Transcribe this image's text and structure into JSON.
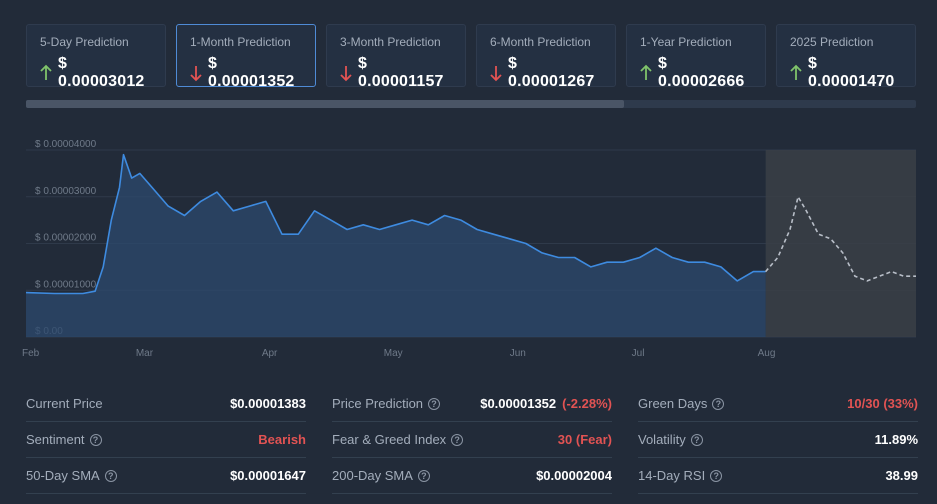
{
  "cards": [
    {
      "label": "5-Day Prediction",
      "value": "$ 0.00003012",
      "direction": "up",
      "active": false
    },
    {
      "label": "1-Month Prediction",
      "value": "$ 0.00001352",
      "direction": "down",
      "active": true
    },
    {
      "label": "3-Month Prediction",
      "value": "$ 0.00001157",
      "direction": "down",
      "active": false
    },
    {
      "label": "6-Month Prediction",
      "value": "$ 0.00001267",
      "direction": "down",
      "active": false
    },
    {
      "label": "1-Year Prediction",
      "value": "$ 0.00002666",
      "direction": "up",
      "active": false
    },
    {
      "label": "2025 Prediction",
      "value": "$ 0.00001470",
      "direction": "up",
      "active": false
    }
  ],
  "colors": {
    "up": "#7fc36a",
    "down": "#e25353",
    "line": "#3e8be0",
    "prediction": "#b8bec8",
    "active_border": "#4f8bd6"
  },
  "stats": {
    "current_price": {
      "label": "Current Price",
      "value": "$0.00001383"
    },
    "sentiment": {
      "label": "Sentiment",
      "value": "Bearish"
    },
    "sma50": {
      "label": "50-Day SMA",
      "value": "$0.00001647"
    },
    "price_prediction": {
      "label": "Price Prediction",
      "value": "$0.00001352",
      "change": "(-2.28%)"
    },
    "fear_greed": {
      "label": "Fear & Greed Index",
      "value": "30 (Fear)"
    },
    "sma200": {
      "label": "200-Day SMA",
      "value": "$0.00002004"
    },
    "green_days": {
      "label": "Green Days",
      "value": "10/30 (33%)"
    },
    "volatility": {
      "label": "Volatility",
      "value": "11.89%"
    },
    "rsi": {
      "label": "14-Day RSI",
      "value": "38.99"
    }
  },
  "chart_data": {
    "type": "line",
    "y_ticks": [
      "$ 0.00",
      "$ 0.00001000",
      "$ 0.00002000",
      "$ 0.00003000",
      "$ 0.00004000"
    ],
    "x_ticks": [
      "Feb",
      "Mar",
      "Apr",
      "May",
      "Jun",
      "Jul",
      "Aug"
    ],
    "ylim": [
      0,
      4e-05
    ],
    "grid": true,
    "series": [
      {
        "kind": "historical",
        "x": [
          "2024-02-01",
          "2024-02-08",
          "2024-02-15",
          "2024-02-18",
          "2024-02-20",
          "2024-02-22",
          "2024-02-24",
          "2024-02-25",
          "2024-02-27",
          "2024-02-29",
          "2024-03-03",
          "2024-03-07",
          "2024-03-11",
          "2024-03-15",
          "2024-03-19",
          "2024-03-23",
          "2024-03-27",
          "2024-03-31",
          "2024-04-04",
          "2024-04-08",
          "2024-04-12",
          "2024-04-16",
          "2024-04-20",
          "2024-04-24",
          "2024-04-28",
          "2024-05-02",
          "2024-05-06",
          "2024-05-10",
          "2024-05-14",
          "2024-05-18",
          "2024-05-22",
          "2024-05-26",
          "2024-05-30",
          "2024-06-03",
          "2024-06-07",
          "2024-06-11",
          "2024-06-15",
          "2024-06-19",
          "2024-06-23",
          "2024-06-27",
          "2024-07-01",
          "2024-07-05",
          "2024-07-09",
          "2024-07-13",
          "2024-07-17",
          "2024-07-21",
          "2024-07-25",
          "2024-07-29",
          "2024-08-01"
        ],
        "y": [
          9.5e-06,
          9.3e-06,
          9.3e-06,
          9.8e-06,
          1.5e-05,
          2.5e-05,
          3.2e-05,
          3.9e-05,
          3.4e-05,
          3.5e-05,
          3.2e-05,
          2.8e-05,
          2.6e-05,
          2.9e-05,
          3.1e-05,
          2.7e-05,
          2.8e-05,
          2.9e-05,
          2.2e-05,
          2.2e-05,
          2.7e-05,
          2.5e-05,
          2.3e-05,
          2.4e-05,
          2.3e-05,
          2.4e-05,
          2.5e-05,
          2.4e-05,
          2.6e-05,
          2.5e-05,
          2.3e-05,
          2.2e-05,
          2.1e-05,
          2e-05,
          1.8e-05,
          1.7e-05,
          1.7e-05,
          1.5e-05,
          1.6e-05,
          1.6e-05,
          1.7e-05,
          1.9e-05,
          1.7e-05,
          1.6e-05,
          1.6e-05,
          1.5e-05,
          1.2e-05,
          1.4e-05,
          1.4e-05
        ]
      },
      {
        "kind": "prediction",
        "x": [
          "2024-08-01",
          "2024-08-04",
          "2024-08-07",
          "2024-08-09",
          "2024-08-11",
          "2024-08-14",
          "2024-08-17",
          "2024-08-20",
          "2024-08-23",
          "2024-08-26",
          "2024-08-29",
          "2024-09-01",
          "2024-09-04",
          "2024-09-07"
        ],
        "y": [
          1.4e-05,
          1.7e-05,
          2.3e-05,
          3e-05,
          2.7e-05,
          2.2e-05,
          2.1e-05,
          1.8e-05,
          1.3e-05,
          1.2e-05,
          1.3e-05,
          1.4e-05,
          1.3e-05,
          1.3e-05
        ]
      }
    ]
  }
}
